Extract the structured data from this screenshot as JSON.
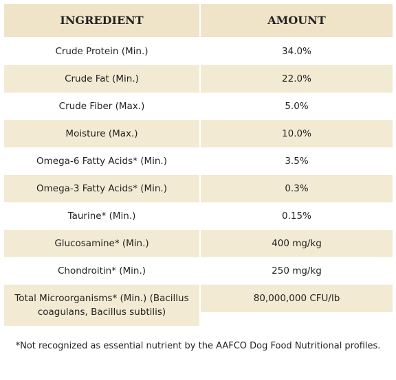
{
  "table": {
    "header": [
      "INGREDIENT",
      "AMOUNT"
    ],
    "rows": [
      [
        "Crude Protein (Min.)",
        "34.0%"
      ],
      [
        "Crude Fat (Min.)",
        "22.0%"
      ],
      [
        "Crude Fiber (Max.)",
        "5.0%"
      ],
      [
        "Moisture (Max.)",
        "10.0%"
      ],
      [
        "Omega-6 Fatty Acids* (Min.)",
        "3.5%"
      ],
      [
        "Omega-3 Fatty Acids* (Min.)",
        "0.3%"
      ],
      [
        "Taurine* (Min.)",
        "0.15%"
      ],
      [
        "Glucosamine* (Min.)",
        "400 mg/kg"
      ],
      [
        "Chondroitin* (Min.)",
        "250 mg/kg"
      ],
      [
        "Total Microorganisms* (Min.) (Bacillus coagulans, Bacillus subtilis)",
        "80,000,000 CFU/lb"
      ]
    ]
  },
  "footnote": "*Not recognized as essential nutrient by the AAFCO Dog Food Nutritional profiles."
}
